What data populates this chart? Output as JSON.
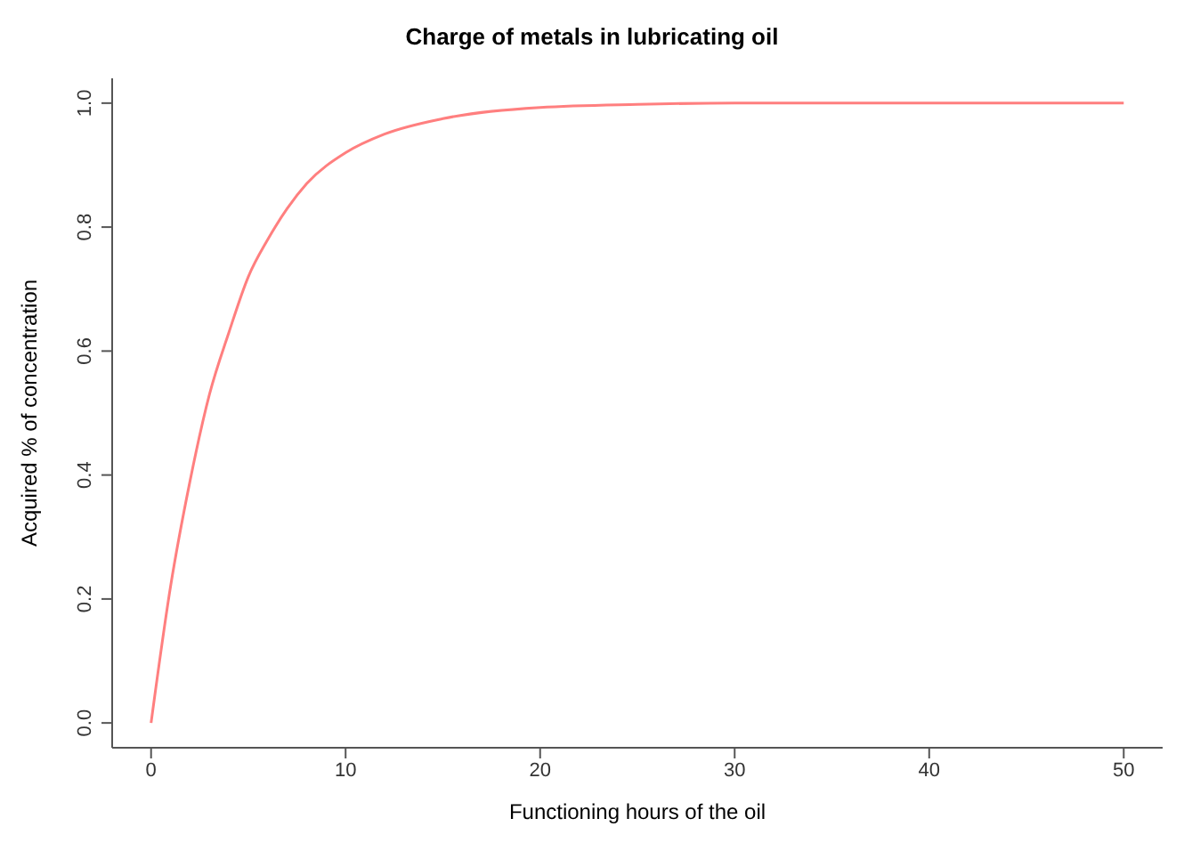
{
  "chart_data": {
    "type": "line",
    "title": "Charge of metals in lubricating oil",
    "xlabel": "Functioning hours of the oil",
    "ylabel": "Acquired % of concentration",
    "x": [
      0,
      1,
      2,
      3,
      4,
      5,
      6,
      7,
      8,
      10,
      12,
      15,
      20,
      25,
      30,
      40,
      50
    ],
    "series": [
      {
        "color": "#ff7f7f",
        "values": [
          0,
          0.22,
          0.39,
          0.53,
          0.63,
          0.72,
          0.78,
          0.83,
          0.87,
          0.92,
          0.95,
          0.975,
          0.993,
          0.998,
          1.0,
          1.0,
          1.0
        ]
      }
    ],
    "xlim": [
      -2,
      52
    ],
    "xticks": [
      0,
      10,
      20,
      30,
      40,
      50
    ],
    "ylim": [
      -0.04,
      1.04
    ],
    "yticks": [
      {
        "value": 0,
        "label": "0.0"
      },
      0.2,
      0.4,
      0.6,
      0.8,
      {
        "value": 1,
        "label": "1.0"
      }
    ],
    "grid": false,
    "legend": false,
    "marker": "none",
    "line_style": "solid"
  }
}
